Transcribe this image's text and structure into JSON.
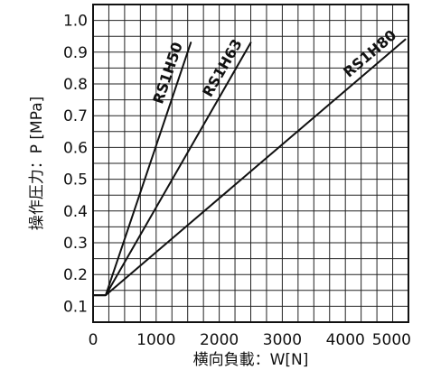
{
  "chart_data": {
    "type": "line",
    "xlabel": "横向負載：W[N]",
    "ylabel": "操作圧力：P [MPa]",
    "xlim": [
      0,
      5000
    ],
    "ylim": [
      0.05,
      1.05
    ],
    "x_ticks": [
      "0",
      "1000",
      "2000",
      "3000",
      "4000",
      "5000"
    ],
    "y_ticks": [
      "0.1",
      "0.2",
      "0.3",
      "0.4",
      "0.5",
      "0.6",
      "0.7",
      "0.8",
      "0.9",
      "1.0"
    ],
    "x_minor_step": 250,
    "y_minor_step": 0.05,
    "grid": true,
    "line_color": "#111111",
    "grid_color": "#222222",
    "series": [
      {
        "name": "RS1H50",
        "x": [
          0,
          200,
          1550
        ],
        "y": [
          0.135,
          0.135,
          0.93
        ]
      },
      {
        "name": "RS1H63",
        "x": [
          0,
          200,
          2500
        ],
        "y": [
          0.135,
          0.135,
          0.93
        ]
      },
      {
        "name": "RS1H80",
        "x": [
          0,
          200,
          4950
        ],
        "y": [
          0.135,
          0.135,
          0.94
        ]
      }
    ]
  }
}
